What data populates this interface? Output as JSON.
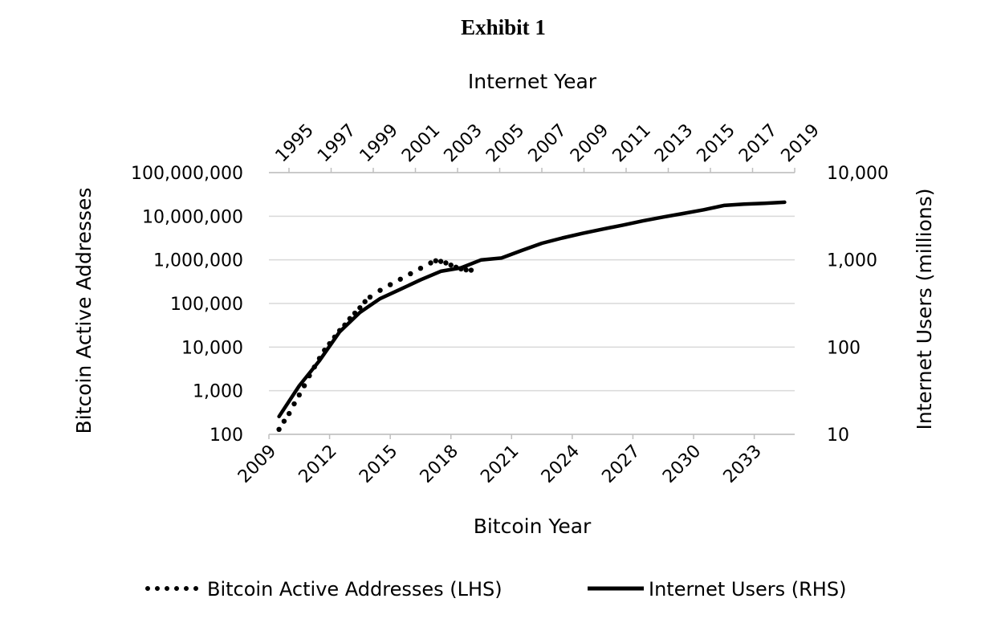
{
  "chart_data": {
    "type": "line",
    "title": "Exhibit 1",
    "x_bottom": {
      "label": "Bitcoin Year",
      "range": [
        2009,
        2035
      ],
      "ticks": [
        2009,
        2012,
        2015,
        2018,
        2021,
        2024,
        2027,
        2030,
        2033
      ],
      "tick_labels": [
        "2009",
        "2012",
        "2015",
        "2018",
        "2021",
        "2024",
        "2027",
        "2030",
        "2033"
      ]
    },
    "x_top": {
      "label": "Internet Year",
      "range": [
        1995,
        2021
      ],
      "tick_labels": [
        "1995",
        "1997",
        "1999",
        "2001",
        "2003",
        "2005",
        "2007",
        "2009",
        "2011",
        "2013",
        "2015",
        "2017",
        "2019"
      ]
    },
    "y_left": {
      "label": "Bitcoin Active Addresses",
      "scale": "log",
      "range": [
        100,
        100000000
      ],
      "ticks": [
        100,
        1000,
        10000,
        100000,
        1000000,
        10000000,
        100000000
      ],
      "tick_labels": [
        "100",
        "1,000",
        "10,000",
        "100,000",
        "1,000,000",
        "10,000,000",
        "100,000,000"
      ]
    },
    "y_right": {
      "label": "Internet Users (millions)",
      "scale": "log",
      "range": [
        10,
        10000
      ],
      "ticks": [
        10,
        100,
        1000,
        10000
      ],
      "tick_labels": [
        "10",
        "100",
        "1,000",
        "10,000"
      ]
    },
    "grid": true,
    "legend_position": "bottom",
    "series": [
      {
        "name": "Bitcoin Active Addresses (LHS)",
        "axis": "left",
        "style": "dotted",
        "x": [
          2009.5,
          2009.75,
          2010.0,
          2010.25,
          2010.5,
          2010.75,
          2011.0,
          2011.25,
          2011.5,
          2011.75,
          2012.0,
          2012.25,
          2012.5,
          2012.75,
          2013.0,
          2013.25,
          2013.5,
          2013.75,
          2014.0,
          2014.5,
          2015.0,
          2015.5,
          2016.0,
          2016.5,
          2017.0,
          2017.25,
          2017.5,
          2017.75,
          2018.0,
          2018.25,
          2018.5,
          2018.75,
          2019.0
        ],
        "values": [
          130,
          200,
          300,
          500,
          800,
          1300,
          2200,
          3500,
          5500,
          8500,
          12000,
          17000,
          24000,
          32000,
          45000,
          60000,
          80000,
          110000,
          140000,
          200000,
          270000,
          360000,
          480000,
          640000,
          850000,
          950000,
          920000,
          850000,
          760000,
          680000,
          620000,
          590000,
          580000
        ]
      },
      {
        "name": "Internet Users (RHS)",
        "axis": "right",
        "style": "solid",
        "x": [
          2009.5,
          2010.5,
          2011.5,
          2012.5,
          2013.5,
          2014.5,
          2015.5,
          2016.5,
          2017.5,
          2018.5,
          2019.5,
          2020.5,
          2021.5,
          2022.5,
          2023.5,
          2024.5,
          2025.5,
          2026.5,
          2027.5,
          2028.5,
          2029.5,
          2030.5,
          2031.5,
          2032.5,
          2033.5,
          2034.5
        ],
        "values": [
          16,
          36,
          70,
          150,
          250,
          360,
          460,
          590,
          740,
          810,
          1000,
          1050,
          1280,
          1550,
          1780,
          2010,
          2250,
          2500,
          2800,
          3100,
          3400,
          3750,
          4200,
          4350,
          4450,
          4580
        ]
      }
    ]
  }
}
